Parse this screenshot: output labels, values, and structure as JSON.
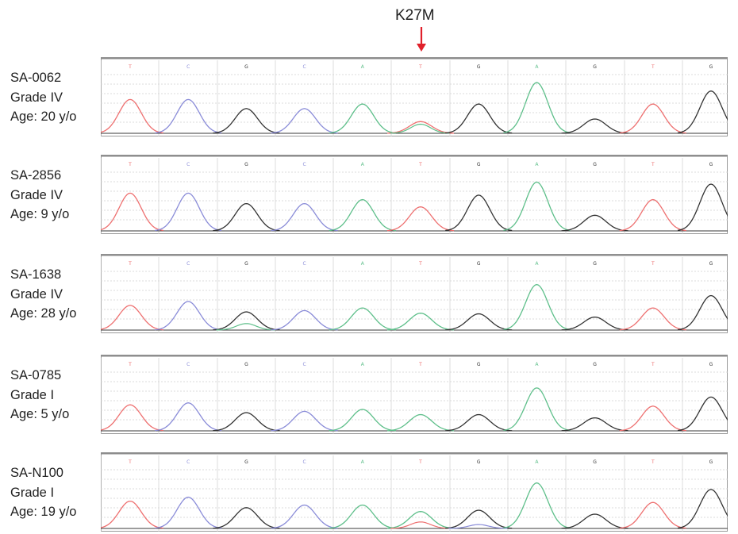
{
  "figure": {
    "mutation_label": "K27M",
    "arrow_color": "#e0202a",
    "base_colors": {
      "T": "#ee7070",
      "C": "#8a8cd8",
      "G": "#333333",
      "A": "#5ebf8a"
    },
    "reference_bases": [
      "T",
      "C",
      "G",
      "C",
      "A",
      "T",
      "G",
      "A",
      "G",
      "T",
      "G"
    ],
    "samples": [
      {
        "id": "SA-0062",
        "grade": "Grade IV",
        "age": "Age: 20 y/o",
        "peaks": [
          {
            "base": "T",
            "h": 0.52
          },
          {
            "base": "C",
            "h": 0.52
          },
          {
            "base": "G",
            "h": 0.38
          },
          {
            "base": "C",
            "h": 0.38
          },
          {
            "base": "A",
            "h": 0.45
          },
          {
            "base": "T",
            "h": 0.18,
            "secondary": {
              "base": "A",
              "h": 0.14
            }
          },
          {
            "base": "G",
            "h": 0.45
          },
          {
            "base": "A",
            "h": 0.78
          },
          {
            "base": "G",
            "h": 0.22
          },
          {
            "base": "T",
            "h": 0.45
          },
          {
            "base": "G",
            "h": 0.65
          }
        ]
      },
      {
        "id": "SA-2856",
        "grade": "Grade IV",
        "age": "Age: 9 y/o",
        "peaks": [
          {
            "base": "T",
            "h": 0.58
          },
          {
            "base": "C",
            "h": 0.58
          },
          {
            "base": "G",
            "h": 0.42
          },
          {
            "base": "C",
            "h": 0.42
          },
          {
            "base": "A",
            "h": 0.48
          },
          {
            "base": "T",
            "h": 0.37
          },
          {
            "base": "G",
            "h": 0.55
          },
          {
            "base": "A",
            "h": 0.75
          },
          {
            "base": "G",
            "h": 0.24
          },
          {
            "base": "T",
            "h": 0.48
          },
          {
            "base": "G",
            "h": 0.72
          }
        ]
      },
      {
        "id": "SA-1638",
        "grade": "Grade IV",
        "age": "Age: 28 y/o",
        "peaks": [
          {
            "base": "T",
            "h": 0.38
          },
          {
            "base": "C",
            "h": 0.44
          },
          {
            "base": "G",
            "h": 0.28,
            "secondary": {
              "base": "A",
              "h": 0.1
            }
          },
          {
            "base": "C",
            "h": 0.3
          },
          {
            "base": "A",
            "h": 0.34
          },
          {
            "base": "A",
            "h": 0.26
          },
          {
            "base": "G",
            "h": 0.25
          },
          {
            "base": "A",
            "h": 0.7
          },
          {
            "base": "G",
            "h": 0.2
          },
          {
            "base": "T",
            "h": 0.34
          },
          {
            "base": "G",
            "h": 0.53
          }
        ]
      },
      {
        "id": "SA-0785",
        "grade": "Grade I",
        "age": "Age: 5 y/o",
        "peaks": [
          {
            "base": "T",
            "h": 0.4
          },
          {
            "base": "C",
            "h": 0.43
          },
          {
            "base": "G",
            "h": 0.28
          },
          {
            "base": "C",
            "h": 0.3
          },
          {
            "base": "A",
            "h": 0.33
          },
          {
            "base": "A",
            "h": 0.25
          },
          {
            "base": "G",
            "h": 0.25
          },
          {
            "base": "A",
            "h": 0.66
          },
          {
            "base": "G",
            "h": 0.2
          },
          {
            "base": "T",
            "h": 0.38
          },
          {
            "base": "G",
            "h": 0.52
          }
        ]
      },
      {
        "id": "SA-N100",
        "grade": "Grade I",
        "age": "Age: 19 y/o",
        "peaks": [
          {
            "base": "T",
            "h": 0.42
          },
          {
            "base": "C",
            "h": 0.48
          },
          {
            "base": "G",
            "h": 0.32
          },
          {
            "base": "C",
            "h": 0.36
          },
          {
            "base": "A",
            "h": 0.36
          },
          {
            "base": "A",
            "h": 0.26,
            "secondary": {
              "base": "T",
              "h": 0.1
            }
          },
          {
            "base": "G",
            "h": 0.28,
            "secondary": {
              "base": "C",
              "h": 0.06
            }
          },
          {
            "base": "A",
            "h": 0.7
          },
          {
            "base": "G",
            "h": 0.22
          },
          {
            "base": "T",
            "h": 0.4
          },
          {
            "base": "G",
            "h": 0.6
          }
        ]
      }
    ]
  }
}
